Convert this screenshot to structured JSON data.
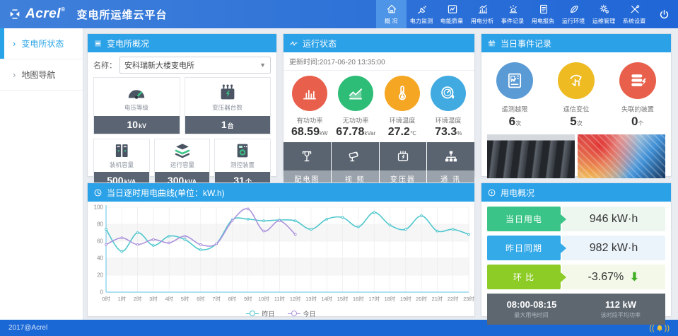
{
  "header": {
    "logo": "Acrel",
    "logo_reg": "®",
    "title": "变电所运维云平台",
    "nav": [
      {
        "label": "概 况",
        "icon": "home-icon",
        "active": true
      },
      {
        "label": "电力监测",
        "icon": "plug-icon",
        "active": false
      },
      {
        "label": "电能质量",
        "icon": "meter-icon",
        "active": false
      },
      {
        "label": "用电分析",
        "icon": "bar-chart-icon",
        "active": false
      },
      {
        "label": "事件记录",
        "icon": "alarm-icon",
        "active": false
      },
      {
        "label": "用电报告",
        "icon": "report-icon",
        "active": false
      },
      {
        "label": "运行环境",
        "icon": "environment-icon",
        "active": false
      },
      {
        "label": "运维管理",
        "icon": "gear-icon",
        "active": false
      },
      {
        "label": "系统设置",
        "icon": "tools-icon",
        "active": false
      }
    ]
  },
  "sidebar": {
    "items": [
      {
        "label": "变电所状态",
        "active": true
      },
      {
        "label": "地图导航",
        "active": false
      }
    ]
  },
  "overview_panel": {
    "title": "变电所概况",
    "name_label": "名称：",
    "station_name": "安科瑞新大楼变电所",
    "stats": [
      {
        "label": "电压等级",
        "value": "10",
        "unit": "kV",
        "icon": "gauge-icon"
      },
      {
        "label": "变压器台数",
        "value": "1",
        "unit": "台",
        "icon": "transformer-icon"
      },
      {
        "label": "装机容量",
        "value": "500",
        "unit": "kVA",
        "icon": "cabinet-icon"
      },
      {
        "label": "运行容量",
        "value": "300",
        "unit": "kVA",
        "icon": "layers-icon"
      },
      {
        "label": "测控装置",
        "value": "31",
        "unit": "个",
        "icon": "device-icon"
      }
    ]
  },
  "status_panel": {
    "title": "运行状态",
    "update_time": "更新时间:2017-06-20 13:35:00",
    "metrics": [
      {
        "label": "有功功率",
        "value": "68.59",
        "unit": "kW",
        "color": "#e8604c",
        "icon": "power-bars-icon"
      },
      {
        "label": "无功功率",
        "value": "67.78",
        "unit": "kVar",
        "color": "#2ebd77",
        "icon": "trend-icon"
      },
      {
        "label": "环境温度",
        "value": "27.2",
        "unit": "℃",
        "color": "#f5a623",
        "icon": "thermometer-icon"
      },
      {
        "label": "环境湿度",
        "value": "73.3",
        "unit": "%",
        "color": "#41aae1",
        "icon": "humidity-icon"
      }
    ],
    "buttons": [
      {
        "label": "配电图",
        "icon": "circuit-icon"
      },
      {
        "label": "视 频",
        "icon": "camera-icon"
      },
      {
        "label": "变压器",
        "icon": "transformer-small-icon"
      },
      {
        "label": "通 讯",
        "icon": "network-icon"
      }
    ]
  },
  "events_panel": {
    "title": "当日事件记录",
    "events": [
      {
        "label": "遥测越限",
        "value": "6",
        "unit": "次",
        "color": "#5b9bd5",
        "icon": "telemetry-icon"
      },
      {
        "label": "遥信变位",
        "value": "5",
        "unit": "次",
        "color": "#eebb22",
        "icon": "signal-change-icon"
      },
      {
        "label": "失联的装置",
        "value": "0",
        "unit": "个",
        "color": "#e8604c",
        "icon": "offline-device-icon"
      }
    ]
  },
  "chart_panel": {
    "title": "当日逐时用电曲线(单位：kW.h)"
  },
  "chart_data": {
    "type": "line",
    "x": [
      "0时",
      "1时",
      "2时",
      "3时",
      "4时",
      "5时",
      "6时",
      "7时",
      "8时",
      "9时",
      "10时",
      "11时",
      "12时",
      "13时",
      "14时",
      "15时",
      "16时",
      "17时",
      "18时",
      "19时",
      "20时",
      "21时",
      "22时",
      "23时"
    ],
    "series": [
      {
        "name": "昨日",
        "color": "#4fc7ce",
        "values": [
          74,
          48,
          70,
          55,
          66,
          62,
          50,
          57,
          85,
          86,
          84,
          85,
          84,
          74,
          86,
          88,
          77,
          94,
          79,
          74,
          90,
          72,
          74,
          68
        ]
      },
      {
        "name": "今日",
        "color": "#ab93dd",
        "values": [
          56,
          64,
          56,
          62,
          58,
          66,
          56,
          57,
          84,
          98,
          72,
          84,
          68
        ]
      }
    ],
    "ylim": [
      0,
      100
    ],
    "yticks": [
      0,
      20,
      40,
      60,
      80,
      100
    ],
    "xlabel": "",
    "ylabel": "",
    "grid": true,
    "legend_position": "bottom"
  },
  "usage_panel": {
    "title": "用电概况",
    "rows": [
      {
        "label": "当日用电",
        "value": "946 kW·h",
        "label_color": "#3bc487",
        "bg": "#edf7f0",
        "trend": ""
      },
      {
        "label": "昨日同期",
        "value": "982 kW·h",
        "label_color": "#35aae8",
        "bg": "#ecf4fb",
        "trend": ""
      },
      {
        "label": "环 比",
        "value": "-3.67%",
        "label_color": "#8dcc26",
        "bg": "#f3f8e9",
        "trend": "down"
      }
    ],
    "footer": {
      "left_value": "08:00-08:15",
      "left_label": "最大用电时间",
      "right_value": "112 kW",
      "right_label": "该时段平均功率"
    }
  },
  "footer": {
    "copyright": "2017@Acrel"
  }
}
